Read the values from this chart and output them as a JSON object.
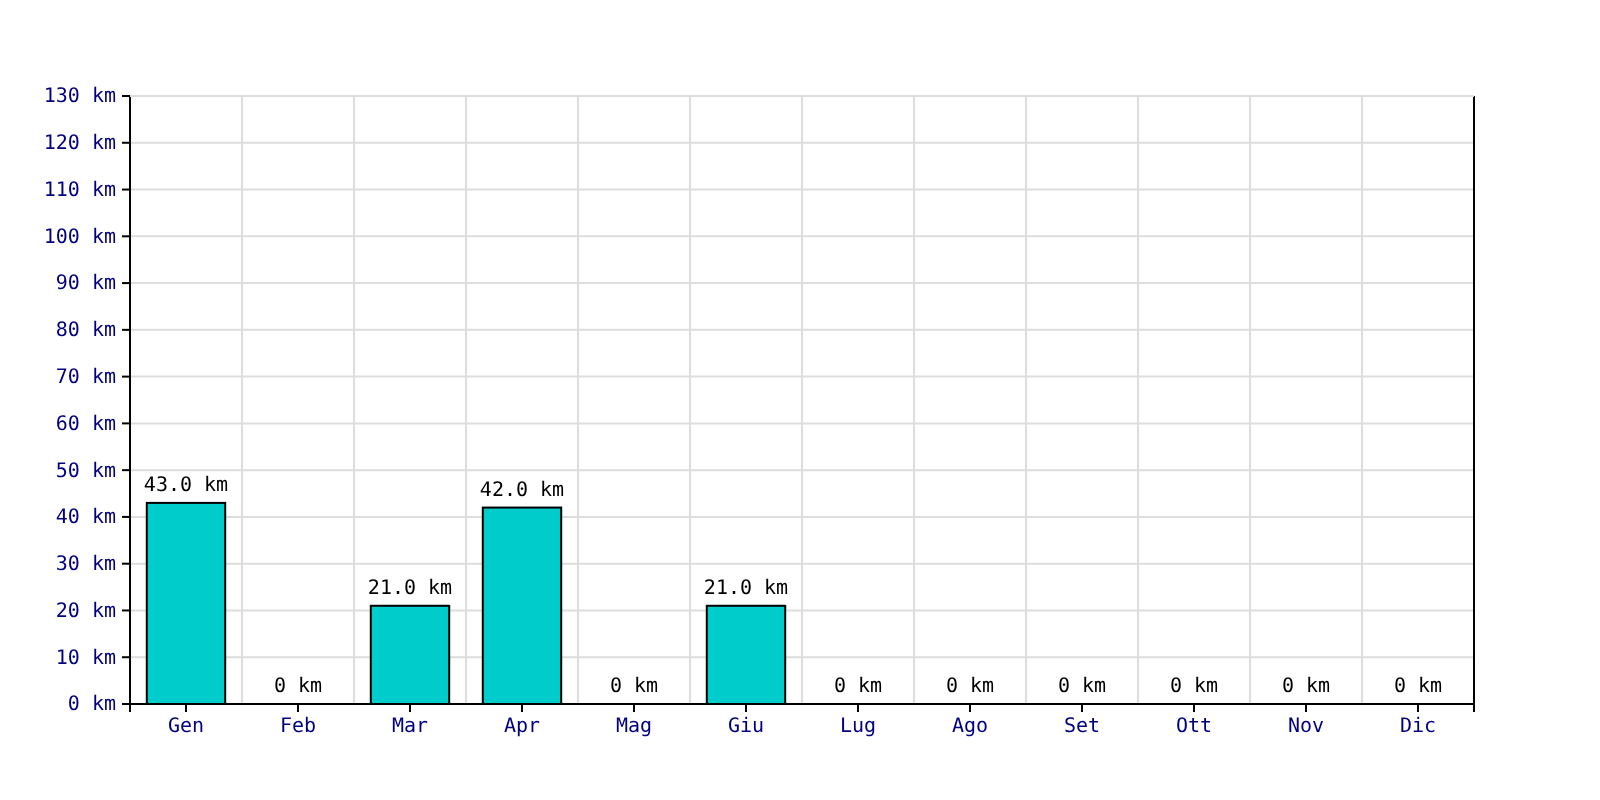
{
  "chart_data": {
    "type": "bar",
    "categories": [
      "Gen",
      "Feb",
      "Mar",
      "Apr",
      "Mag",
      "Giu",
      "Lug",
      "Ago",
      "Set",
      "Ott",
      "Nov",
      "Dic"
    ],
    "values": [
      43,
      0,
      21,
      42,
      0,
      21,
      0,
      0,
      0,
      0,
      0,
      0
    ],
    "value_labels": [
      "43.0 km",
      "0 km",
      "21.0 km",
      "42.0 km",
      "0 km",
      "21.0 km",
      "0 km",
      "0 km",
      "0 km",
      "0 km",
      "0 km",
      "0 km"
    ],
    "color": "#00cccc",
    "ylim": [
      0,
      130
    ],
    "yticks": [
      {
        "value": 0,
        "label": "0 km"
      },
      {
        "value": 10,
        "label": "10 km"
      },
      {
        "value": 20,
        "label": "20 km"
      },
      {
        "value": 30,
        "label": "30 km"
      },
      {
        "value": 40,
        "label": "40 km"
      },
      {
        "value": 50,
        "label": "50 km"
      },
      {
        "value": 60,
        "label": "60 km"
      },
      {
        "value": 70,
        "label": "70 km"
      },
      {
        "value": 80,
        "label": "80 km"
      },
      {
        "value": 90,
        "label": "90 km"
      },
      {
        "value": 100,
        "label": "100 km"
      },
      {
        "value": 110,
        "label": "110 km"
      },
      {
        "value": 120,
        "label": "120 km"
      },
      {
        "value": 130,
        "label": "130 km"
      }
    ],
    "grid": true
  }
}
